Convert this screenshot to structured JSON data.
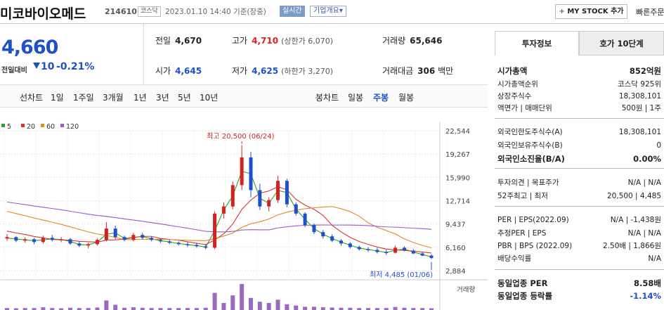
{
  "header": {
    "name": "미코바이오메드",
    "code": "214610",
    "market": "코스닥",
    "datetime": "2023.01.10  14:40  기준(장중)",
    "live": "실시간",
    "corp_info": "기업개요",
    "mystock": "MY STOCK 추가",
    "fast": "빠른주문"
  },
  "price": {
    "current": "4,660",
    "label": "전일대비",
    "diff": "10",
    "rate": "-0.21%"
  },
  "stats": {
    "prev_k": "전일",
    "prev_v": "4,670",
    "high_k": "고가",
    "high_v": "4,710",
    "upper": "(상한가 6,070)",
    "vol_k": "거래량",
    "vol_v": "65,646",
    "open_k": "시가",
    "open_v": "4,645",
    "low_k": "저가",
    "low_v": "4,625",
    "lower": "(하한가 3,270)",
    "amt_k": "거래대금",
    "amt_v": "306",
    "amt_unit": "백만"
  },
  "tabs": {
    "line": "선차트",
    "d1": "1일",
    "w1": "1주일",
    "m3": "3개월",
    "y1": "1년",
    "y3": "3년",
    "y5": "5년",
    "y10": "10년",
    "candle": "봉차트",
    "daily": "일봉",
    "weekly": "주봉",
    "monthly": "월봉"
  },
  "panel": {
    "tab_info": "투자정보",
    "tab_quote": "호가 10단계",
    "rows": [
      {
        "k": "시가총액",
        "v": "852억원"
      },
      {
        "k": "시가총액순위",
        "v": "코스닥 925위"
      },
      {
        "k": "상장주식수",
        "v": "18,308,101"
      },
      {
        "k": "액면가 | 매매단위",
        "v": "500원 | 1주"
      },
      {
        "k": "외국인한도주식수(A)",
        "v": "18,308,101"
      },
      {
        "k": "외국인보유주식수(B)",
        "v": "0"
      },
      {
        "k": "외국인소진율(B/A)",
        "v": "0.00%"
      },
      {
        "k": "투자의견 | 목표주가",
        "v": "N/A | N/A"
      },
      {
        "k": "52주최고 | 최저",
        "v": "20,500 | 4,485"
      },
      {
        "k": "PER | EPS(2022.09)",
        "v": "N/A | -1,438원"
      },
      {
        "k": "추정PER | EPS",
        "v": "N/A | N/A"
      },
      {
        "k": "PBR | BPS (2022.09)",
        "v": "2.50배 | 1,866원"
      },
      {
        "k": "배당수익률",
        "v": "N/A"
      },
      {
        "k": "동일업종 PER",
        "v": "8.58배"
      },
      {
        "k": "동일업종 등락률",
        "v": "-1.14%"
      }
    ]
  },
  "colors": {
    "up": "#d22222",
    "down": "#1e50c8",
    "ma5": "#2aa52a",
    "ma20": "#e03030",
    "ma60": "#e08a20",
    "ma120": "#9a5ac8",
    "volume": "#9a6ac0"
  },
  "chart_data": {
    "type": "candlestick",
    "legend": [
      "5",
      "20",
      "60",
      "120"
    ],
    "y_ticks": [
      22544,
      19267,
      15990,
      12714,
      9437,
      6160,
      2884
    ],
    "ylim": [
      2884,
      22544
    ],
    "high_label": "최고 20,500 (06/24)",
    "low_label": "최저 4,485 (01/06)",
    "volume_label": "거래량",
    "ohlc": [
      [
        7400,
        8000,
        7100,
        7600
      ],
      [
        7600,
        7700,
        6900,
        7100
      ],
      [
        7100,
        7600,
        6800,
        7300
      ],
      [
        7300,
        7500,
        6600,
        6900
      ],
      [
        6900,
        7800,
        6700,
        7500
      ],
      [
        7500,
        7900,
        7000,
        7200
      ],
      [
        7200,
        7600,
        6900,
        7300
      ],
      [
        7300,
        7500,
        6500,
        6700
      ],
      [
        6700,
        7000,
        6200,
        6400
      ],
      [
        6400,
        6800,
        6000,
        6600
      ],
      [
        6600,
        7400,
        6400,
        7200
      ],
      [
        7200,
        9700,
        7000,
        8800
      ],
      [
        8800,
        9200,
        7300,
        7600
      ],
      [
        7600,
        7800,
        7000,
        7200
      ],
      [
        7200,
        8200,
        7000,
        7900
      ],
      [
        7900,
        8200,
        7300,
        7500
      ],
      [
        7500,
        7700,
        7000,
        7200
      ],
      [
        7200,
        7400,
        6800,
        7000
      ],
      [
        7000,
        7200,
        6600,
        6800
      ],
      [
        6800,
        7000,
        6400,
        6600
      ],
      [
        6600,
        6900,
        6200,
        6500
      ],
      [
        6500,
        6800,
        6100,
        6300
      ],
      [
        6300,
        6600,
        5900,
        6100
      ],
      [
        6100,
        11200,
        5900,
        10900
      ],
      [
        10900,
        12500,
        10200,
        11900
      ],
      [
        11900,
        15400,
        11500,
        14900
      ],
      [
        14900,
        20500,
        14200,
        18800
      ],
      [
        18800,
        19600,
        13200,
        14200
      ],
      [
        14200,
        15100,
        11400,
        11900
      ],
      [
        11900,
        13200,
        11200,
        12800
      ],
      [
        12800,
        16200,
        12400,
        15500
      ],
      [
        15500,
        15800,
        11800,
        12200
      ],
      [
        12200,
        12500,
        10600,
        10900
      ],
      [
        10900,
        11100,
        9000,
        9300
      ],
      [
        9300,
        9500,
        8000,
        8300
      ],
      [
        8300,
        8600,
        7400,
        7700
      ],
      [
        7700,
        8000,
        6900,
        7100
      ],
      [
        7100,
        7300,
        6400,
        6700
      ],
      [
        6700,
        6900,
        6000,
        6200
      ],
      [
        6200,
        6400,
        5700,
        5900
      ],
      [
        5900,
        6200,
        5500,
        5800
      ],
      [
        5800,
        6100,
        5300,
        5500
      ],
      [
        5500,
        5800,
        5100,
        5400
      ],
      [
        5400,
        6400,
        5300,
        6100
      ],
      [
        6100,
        6300,
        5600,
        5700
      ],
      [
        5700,
        5900,
        5200,
        5300
      ],
      [
        5300,
        5500,
        4900,
        5000
      ],
      [
        5000,
        5200,
        4485,
        4660
      ]
    ],
    "volume": [
      0.05,
      0.04,
      0.05,
      0.05,
      0.08,
      0.05,
      0.04,
      0.06,
      0.05,
      0.05,
      0.07,
      0.35,
      0.18,
      0.06,
      0.08,
      0.06,
      0.05,
      0.05,
      0.05,
      0.05,
      0.05,
      0.05,
      0.06,
      0.65,
      0.25,
      0.55,
      1.0,
      0.45,
      0.3,
      0.25,
      0.38,
      0.2,
      0.15,
      0.1,
      0.1,
      0.08,
      0.07,
      0.06,
      0.06,
      0.05,
      0.05,
      0.05,
      0.05,
      0.09,
      0.06,
      0.05,
      0.05,
      0.04
    ]
  }
}
